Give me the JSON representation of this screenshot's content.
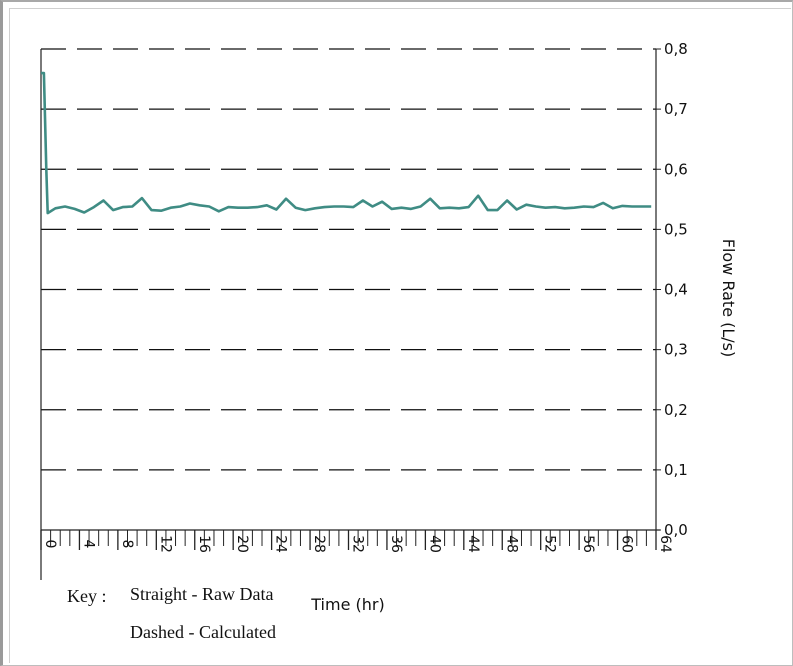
{
  "chart_data": {
    "type": "line",
    "title": "",
    "xlabel": "Time (hr)",
    "ylabel": "Flow Rate (L/s)",
    "ylim": [
      0,
      0.8
    ],
    "xlim": [
      0,
      64
    ],
    "y_ticks": [
      "0,0",
      "0,1",
      "0,2",
      "0,3",
      "0,4",
      "0,5",
      "0,6",
      "0,7",
      "0,8"
    ],
    "x_tick_labels": [
      "0",
      "4",
      "8",
      "12",
      "16",
      "20",
      "24",
      "28",
      "32",
      "36",
      "40",
      "44",
      "48",
      "52",
      "56",
      "60",
      "64"
    ],
    "x_ticks_values": [
      0,
      4,
      8,
      12,
      16,
      20,
      24,
      28,
      32,
      36,
      40,
      44,
      48,
      52,
      56,
      60,
      64
    ],
    "x_minor_step": 1,
    "grid": "horizontal dashed",
    "y_axis_position": "right",
    "series": [
      {
        "name": "Straight - Raw Data",
        "style": "solid",
        "color": "#3f8c84",
        "x": [
          0,
          0.3,
          0.55,
          0.7,
          1.5,
          2.5,
          3.5,
          4.5,
          5.5,
          6.5,
          7.5,
          8.5,
          9.5,
          10.5,
          11.5,
          12.5,
          13.5,
          14.5,
          15.5,
          16.5,
          17.5,
          18.5,
          19.5,
          20.5,
          21.5,
          22.5,
          23.5,
          24.5,
          25.5,
          26.5,
          27.5,
          28.5,
          29.5,
          30.5,
          31.5,
          32.5,
          33.5,
          34.5,
          35.5,
          36.5,
          37.5,
          38.5,
          39.5,
          40.5,
          41.5,
          42.5,
          43.5,
          44.5,
          45.5,
          46.5,
          47.5,
          48.5,
          49.5,
          50.5,
          51.5,
          52.5,
          53.5,
          54.5,
          55.5,
          56.5,
          57.5,
          58.5,
          59.5,
          60.5,
          61.5,
          62.5,
          63.5
        ],
        "y": [
          0.76,
          0.76,
          0.6,
          0.527,
          0.535,
          0.538,
          0.534,
          0.528,
          0.537,
          0.548,
          0.532,
          0.537,
          0.538,
          0.552,
          0.532,
          0.531,
          0.536,
          0.538,
          0.543,
          0.54,
          0.538,
          0.53,
          0.537,
          0.536,
          0.536,
          0.537,
          0.54,
          0.533,
          0.551,
          0.536,
          0.532,
          0.535,
          0.537,
          0.538,
          0.538,
          0.537,
          0.548,
          0.538,
          0.546,
          0.534,
          0.536,
          0.534,
          0.538,
          0.551,
          0.535,
          0.536,
          0.535,
          0.537,
          0.556,
          0.532,
          0.532,
          0.548,
          0.533,
          0.541,
          0.538,
          0.536,
          0.537,
          0.535,
          0.536,
          0.538,
          0.537,
          0.544,
          0.535,
          0.539,
          0.538,
          0.538,
          0.538
        ]
      }
    ]
  },
  "key": {
    "label": "Key :",
    "line1": "Straight - Raw Data",
    "line2": "Dashed - Calculated"
  },
  "colors": {
    "series": "#3f8c84",
    "grid": "#111111",
    "axis": "#222222"
  }
}
